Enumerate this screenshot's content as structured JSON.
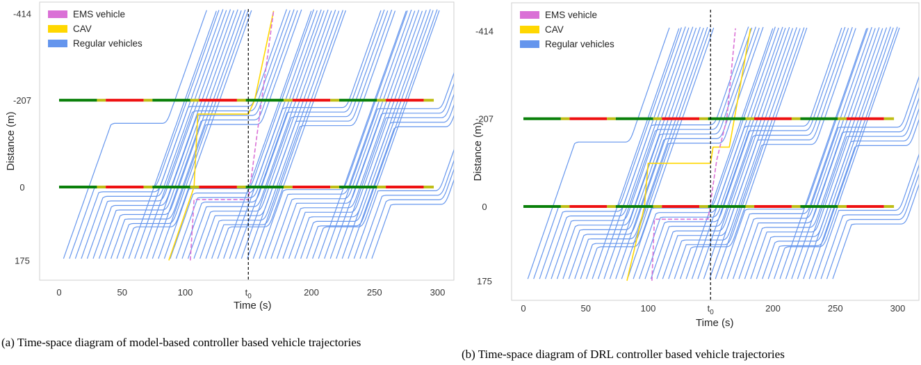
{
  "chart_data": [
    {
      "type": "line",
      "xlabel": "Time (s)",
      "ylabel": "Distance (m)",
      "x_ticks": [
        "0",
        "50",
        "100",
        "t0",
        "200",
        "250",
        "300"
      ],
      "x_tick_values": [
        0,
        50,
        100,
        150,
        200,
        250,
        300
      ],
      "y_ticks": [
        "-414",
        "-207",
        "0",
        "175"
      ],
      "y_tick_values": [
        -414,
        -207,
        0,
        175
      ],
      "xlim": [
        -3,
        313
      ],
      "ylim": [
        -420,
        185
      ],
      "t0_marker": 150,
      "grid": false,
      "legend_position": "top-left",
      "series": [
        {
          "name": "EMS vehicle",
          "color": "#da70d6"
        },
        {
          "name": "CAV",
          "color": "#ffd700"
        },
        {
          "name": "Regular vehicles",
          "color": "#6495ed"
        }
      ],
      "signals": [
        {
          "y": -207,
          "phases": [
            [
              0,
              30,
              "green"
            ],
            [
              30,
              37,
              "yellow"
            ],
            [
              37,
              67,
              "red"
            ],
            [
              67,
              74,
              "yellow"
            ],
            [
              74,
              104,
              "green"
            ],
            [
              104,
              111,
              "yellow"
            ],
            [
              111,
              141,
              "red"
            ],
            [
              141,
              148,
              "yellow"
            ],
            [
              148,
              178,
              "green"
            ],
            [
              178,
              185,
              "yellow"
            ],
            [
              185,
              215,
              "red"
            ],
            [
              215,
              222,
              "yellow"
            ],
            [
              222,
              252,
              "green"
            ],
            [
              252,
              259,
              "yellow"
            ],
            [
              259,
              289,
              "red"
            ],
            [
              289,
              297,
              "yellow"
            ]
          ]
        },
        {
          "y": 0,
          "phases": [
            [
              0,
              30,
              "green"
            ],
            [
              30,
              37,
              "yellow"
            ],
            [
              37,
              67,
              "red"
            ],
            [
              67,
              74,
              "yellow"
            ],
            [
              74,
              104,
              "green"
            ],
            [
              104,
              111,
              "yellow"
            ],
            [
              111,
              141,
              "red"
            ],
            [
              141,
              148,
              "yellow"
            ],
            [
              148,
              178,
              "green"
            ],
            [
              178,
              185,
              "yellow"
            ],
            [
              185,
              215,
              "red"
            ],
            [
              215,
              222,
              "yellow"
            ],
            [
              222,
              252,
              "green"
            ],
            [
              252,
              259,
              "yellow"
            ],
            [
              259,
              289,
              "red"
            ],
            [
              289,
              297,
              "yellow"
            ]
          ]
        }
      ],
      "cav_trajectory": [
        [
          87,
          175
        ],
        [
          107,
          0
        ],
        [
          110,
          -174
        ],
        [
          150,
          -174
        ],
        [
          155,
          -207
        ],
        [
          170,
          -420
        ]
      ],
      "ems_trajectory": [
        [
          104,
          175
        ],
        [
          107,
          30
        ],
        [
          150,
          30
        ],
        [
          170,
          -420
        ]
      ]
    },
    {
      "type": "line",
      "xlabel": "Time (s)",
      "ylabel": "Distance (m)",
      "x_ticks": [
        "0",
        "50",
        "100",
        "t0",
        "200",
        "250",
        "300"
      ],
      "x_tick_values": [
        0,
        50,
        100,
        150,
        200,
        250,
        300
      ],
      "y_ticks": [
        "-414",
        "-207",
        "0",
        "175"
      ],
      "y_tick_values": [
        -414,
        -207,
        0,
        175
      ],
      "xlim": [
        -3,
        313
      ],
      "ylim": [
        -420,
        185
      ],
      "t0_marker": 150,
      "grid": false,
      "legend_position": "top-left",
      "series": [
        {
          "name": "EMS vehicle",
          "color": "#da70d6"
        },
        {
          "name": "CAV",
          "color": "#ffd700"
        },
        {
          "name": "Regular vehicles",
          "color": "#6495ed"
        }
      ],
      "signals": [
        {
          "y": -207,
          "phases": [
            [
              0,
              30,
              "green"
            ],
            [
              30,
              37,
              "yellow"
            ],
            [
              37,
              67,
              "red"
            ],
            [
              67,
              74,
              "yellow"
            ],
            [
              74,
              104,
              "green"
            ],
            [
              104,
              111,
              "yellow"
            ],
            [
              111,
              141,
              "red"
            ],
            [
              141,
              148,
              "yellow"
            ],
            [
              148,
              178,
              "green"
            ],
            [
              178,
              185,
              "yellow"
            ],
            [
              185,
              215,
              "red"
            ],
            [
              215,
              222,
              "yellow"
            ],
            [
              222,
              252,
              "green"
            ],
            [
              252,
              259,
              "yellow"
            ],
            [
              259,
              289,
              "red"
            ],
            [
              289,
              297,
              "yellow"
            ]
          ]
        },
        {
          "y": 0,
          "phases": [
            [
              0,
              30,
              "green"
            ],
            [
              30,
              37,
              "yellow"
            ],
            [
              37,
              67,
              "red"
            ],
            [
              67,
              74,
              "yellow"
            ],
            [
              74,
              104,
              "green"
            ],
            [
              104,
              111,
              "yellow"
            ],
            [
              111,
              141,
              "red"
            ],
            [
              141,
              148,
              "yellow"
            ],
            [
              148,
              178,
              "green"
            ],
            [
              178,
              185,
              "yellow"
            ],
            [
              185,
              215,
              "red"
            ],
            [
              215,
              222,
              "yellow"
            ],
            [
              222,
              252,
              "green"
            ],
            [
              252,
              259,
              "yellow"
            ],
            [
              259,
              289,
              "red"
            ],
            [
              289,
              297,
              "yellow"
            ]
          ]
        }
      ],
      "cav_trajectory": [
        [
          83,
          175
        ],
        [
          97,
          0
        ],
        [
          100,
          -102
        ],
        [
          150,
          -102
        ],
        [
          152,
          -140
        ],
        [
          165,
          -140
        ],
        [
          182,
          -420
        ]
      ],
      "ems_trajectory": [
        [
          103,
          175
        ],
        [
          105,
          30
        ],
        [
          148,
          30
        ],
        [
          155,
          -110
        ],
        [
          163,
          -207
        ],
        [
          170,
          -420
        ]
      ]
    }
  ],
  "captions": {
    "a": "(a) Time-space diagram of model-based controller based vehicle trajectories",
    "b": "(b) Time-space diagram of DRL controller based vehicle trajectories"
  }
}
